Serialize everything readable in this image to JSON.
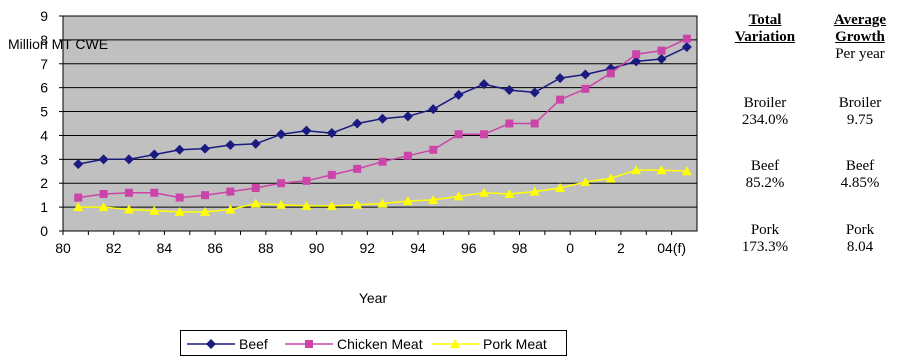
{
  "chart_data": {
    "type": "line",
    "title": "",
    "ylabel": "Million MT CWE",
    "xlabel": "Year",
    "ylim": [
      0,
      9
    ],
    "yticks": [
      0,
      1,
      2,
      3,
      4,
      5,
      6,
      7,
      8,
      9
    ],
    "xtick_labels": [
      "80",
      "82",
      "84",
      "86",
      "88",
      "90",
      "92",
      "94",
      "96",
      "98",
      "0",
      "2",
      "04(f)"
    ],
    "x": [
      1980.6,
      1981.6,
      1982.6,
      1983.6,
      1984.6,
      1985.6,
      1986.6,
      1987.6,
      1988.6,
      1989.6,
      1990.6,
      1991.6,
      1992.6,
      1993.6,
      1994.6,
      1995.6,
      1996.6,
      1997.6,
      1998.6,
      1999.6,
      2000.6,
      2001.6,
      2002.6,
      2003.6,
      2004.6
    ],
    "series": [
      {
        "name": "Beef",
        "color": "#1a1a80",
        "marker": "diamond",
        "values": [
          2.8,
          3.0,
          3.0,
          3.2,
          3.4,
          3.45,
          3.6,
          3.65,
          4.05,
          4.2,
          4.1,
          4.5,
          4.7,
          4.8,
          5.1,
          5.7,
          6.15,
          5.9,
          5.8,
          6.4,
          6.55,
          6.8,
          7.1,
          7.2,
          7.7
        ]
      },
      {
        "name": "Chicken Meat",
        "color": "#cc44aa",
        "marker": "square",
        "values": [
          1.4,
          1.55,
          1.6,
          1.6,
          1.4,
          1.5,
          1.65,
          1.8,
          2.0,
          2.1,
          2.35,
          2.6,
          2.9,
          3.15,
          3.4,
          4.05,
          4.05,
          4.5,
          4.5,
          5.5,
          5.95,
          6.6,
          7.4,
          7.55,
          8.05
        ]
      },
      {
        "name": "Pork Meat",
        "color": "#ffff00",
        "marker": "triangle",
        "values": [
          1.0,
          1.0,
          0.9,
          0.85,
          0.8,
          0.8,
          0.9,
          1.15,
          1.1,
          1.05,
          1.05,
          1.1,
          1.15,
          1.25,
          1.3,
          1.45,
          1.6,
          1.55,
          1.65,
          1.8,
          2.05,
          2.2,
          2.55,
          2.55,
          2.5
        ]
      }
    ],
    "grid": true,
    "legend_position": "bottom",
    "background_color": "#c0c0c0"
  },
  "side_table": {
    "col1_header_1": "Total",
    "col1_header_2": "Variation",
    "col2_header_1": "Average",
    "col2_header_2": "Growth",
    "col2_sub": "Per year",
    "rows": [
      {
        "label": "Broiler",
        "total": "234.0%",
        "growth": "9.75"
      },
      {
        "label": "Beef",
        "total": "85.2%",
        "growth": "4.85%"
      },
      {
        "label": "Pork",
        "total": "173.3%",
        "growth": "8.04"
      }
    ]
  },
  "legend": {
    "items": [
      "Beef",
      "Chicken Meat",
      "Pork Meat"
    ]
  }
}
